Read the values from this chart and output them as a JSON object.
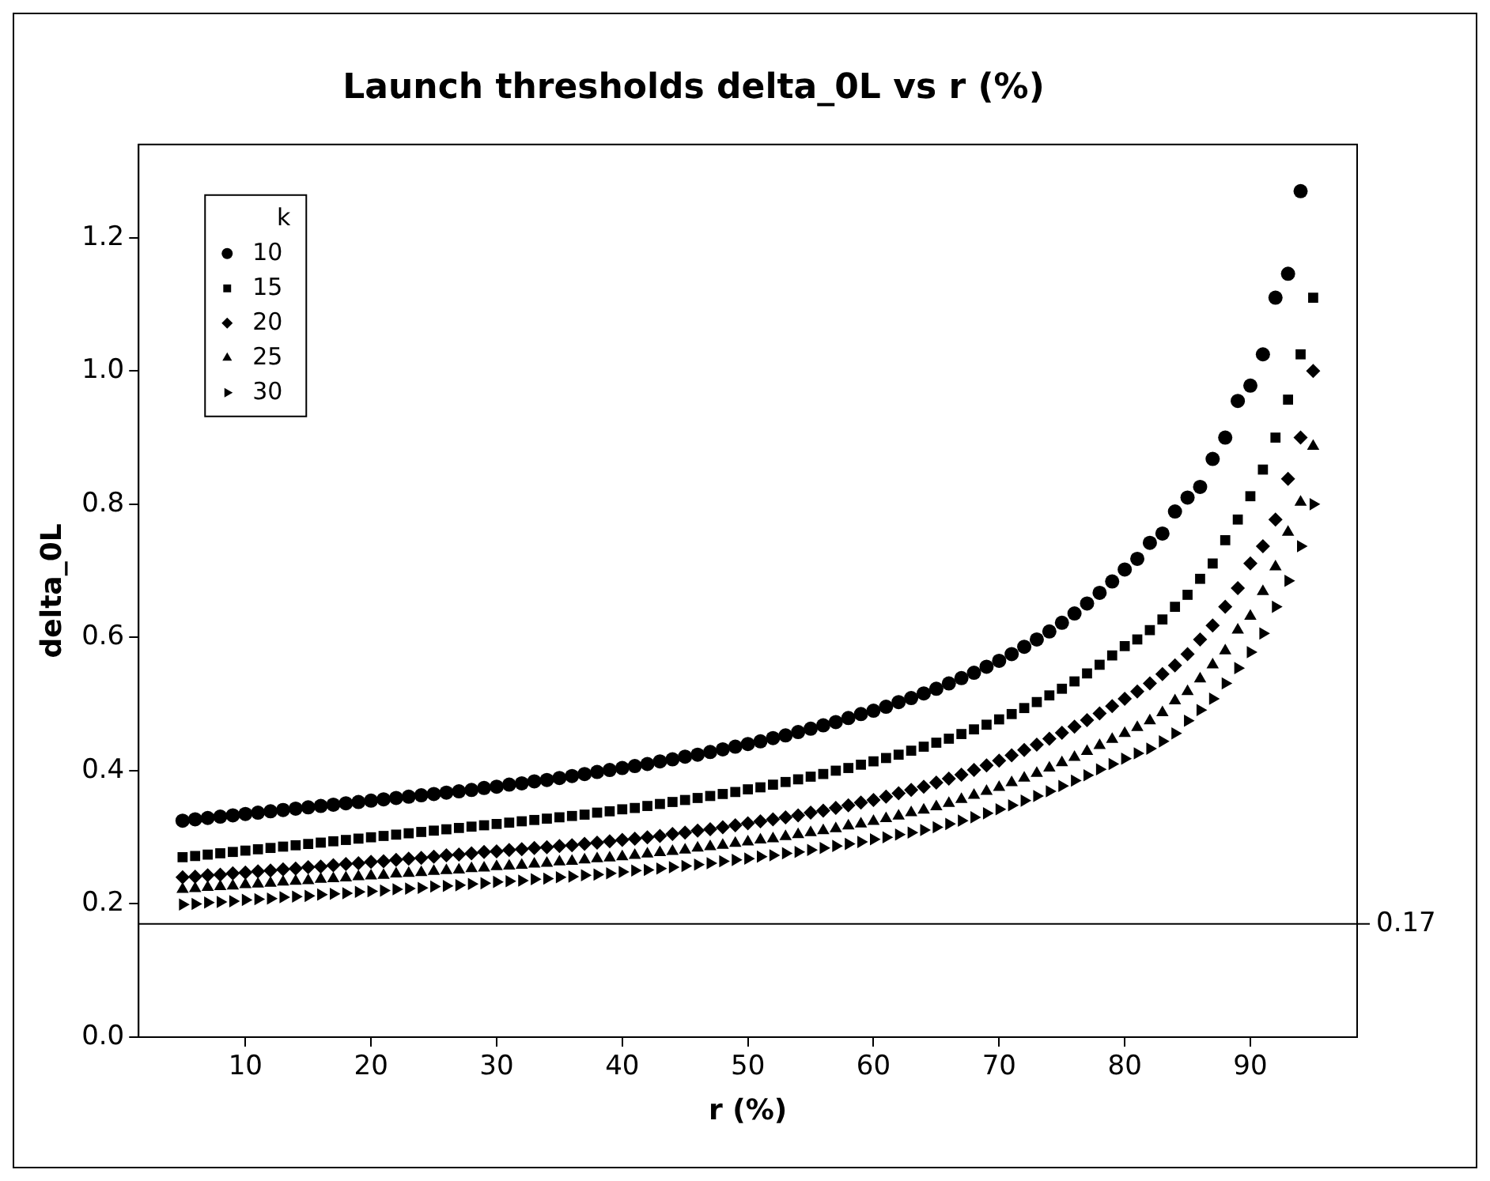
{
  "chart_data": {
    "type": "scatter",
    "title": "Launch thresholds delta_0L vs r (%)",
    "xlabel": "r (%)",
    "ylabel": "delta_0L",
    "legend_title": "k",
    "legend": "top left",
    "grid": false,
    "x": [
      5,
      6,
      7,
      8,
      9,
      10,
      11,
      12,
      13,
      14,
      15,
      16,
      17,
      18,
      19,
      20,
      21,
      22,
      23,
      24,
      25,
      26,
      27,
      28,
      29,
      30,
      31,
      32,
      33,
      34,
      35,
      36,
      37,
      38,
      39,
      40,
      41,
      42,
      43,
      44,
      45,
      46,
      47,
      48,
      49,
      50,
      51,
      52,
      53,
      54,
      55,
      56,
      57,
      58,
      59,
      60,
      61,
      62,
      63,
      64,
      65,
      66,
      67,
      68,
      69,
      70,
      71,
      72,
      73,
      74,
      75,
      76,
      77,
      78,
      79,
      80,
      81,
      82,
      83,
      84,
      85,
      86,
      87,
      88,
      89,
      90,
      91,
      92,
      93,
      94,
      95
    ],
    "xlim": [
      1.5,
      98.5
    ],
    "xticks": [
      10,
      20,
      30,
      40,
      50,
      60,
      70,
      80,
      90
    ],
    "ylim": [
      0,
      1.34
    ],
    "yticks": [
      {
        "value": 0,
        "label": "0.0"
      },
      {
        "value": 0.2,
        "label": "0.2"
      },
      {
        "value": 0.4,
        "label": "0.4"
      },
      {
        "value": 0.6,
        "label": "0.6"
      },
      {
        "value": 0.8,
        "label": "0.8"
      },
      {
        "value": 1,
        "label": "1.0"
      },
      {
        "value": 1.2,
        "label": "1.2"
      }
    ],
    "ref_lines": [
      {
        "axis": "y",
        "value": 0.17,
        "label": "0.17",
        "color": "#000000"
      }
    ],
    "series": [
      {
        "name": "10",
        "color": "#000000",
        "marker": "circle",
        "values": [
          0.325,
          0.327,
          0.329,
          0.331,
          0.333,
          0.335,
          0.337,
          0.339,
          0.341,
          0.343,
          0.345,
          0.347,
          0.349,
          0.351,
          0.353,
          0.355,
          0.357,
          0.359,
          0.361,
          0.363,
          0.365,
          0.367,
          0.369,
          0.371,
          0.374,
          0.376,
          0.379,
          0.381,
          0.384,
          0.386,
          0.389,
          0.392,
          0.395,
          0.398,
          0.401,
          0.404,
          0.407,
          0.41,
          0.414,
          0.417,
          0.421,
          0.424,
          0.428,
          0.432,
          0.436,
          0.44,
          0.444,
          0.449,
          0.453,
          0.458,
          0.463,
          0.468,
          0.473,
          0.479,
          0.485,
          0.49,
          0.496,
          0.503,
          0.509,
          0.516,
          0.523,
          0.531,
          0.539,
          0.547,
          0.556,
          0.565,
          0.575,
          0.586,
          0.597,
          0.609,
          0.622,
          0.636,
          0.651,
          0.667,
          0.684,
          0.702,
          0.718,
          0.742,
          0.756,
          0.789,
          0.81,
          0.826,
          0.868,
          0.9,
          0.955,
          0.978,
          1.025,
          1.11,
          1.146,
          1.27,
          null
        ]
      },
      {
        "name": "15",
        "color": "#000000",
        "marker": "square",
        "values": [
          0.27,
          0.272,
          0.274,
          0.276,
          0.278,
          0.28,
          0.282,
          0.284,
          0.286,
          0.288,
          0.29,
          0.292,
          0.294,
          0.296,
          0.298,
          0.3,
          0.302,
          0.304,
          0.306,
          0.308,
          0.31,
          0.312,
          0.314,
          0.316,
          0.318,
          0.32,
          0.322,
          0.324,
          0.326,
          0.328,
          0.33,
          0.332,
          0.334,
          0.337,
          0.339,
          0.342,
          0.344,
          0.347,
          0.35,
          0.353,
          0.356,
          0.359,
          0.362,
          0.365,
          0.368,
          0.372,
          0.375,
          0.379,
          0.383,
          0.387,
          0.391,
          0.395,
          0.4,
          0.404,
          0.409,
          0.414,
          0.419,
          0.424,
          0.43,
          0.436,
          0.442,
          0.448,
          0.455,
          0.462,
          0.469,
          0.477,
          0.485,
          0.494,
          0.503,
          0.513,
          0.523,
          0.534,
          0.546,
          0.559,
          0.573,
          0.587,
          0.597,
          0.611,
          0.627,
          0.646,
          0.664,
          0.688,
          0.711,
          0.746,
          0.777,
          0.812,
          0.852,
          0.9,
          0.957,
          1.025,
          1.11
        ]
      },
      {
        "name": "20",
        "color": "#000000",
        "marker": "diamond",
        "values": [
          0.24,
          0.241,
          0.243,
          0.244,
          0.246,
          0.247,
          0.249,
          0.25,
          0.252,
          0.253,
          0.255,
          0.256,
          0.258,
          0.26,
          0.261,
          0.263,
          0.264,
          0.266,
          0.268,
          0.269,
          0.271,
          0.273,
          0.274,
          0.276,
          0.278,
          0.279,
          0.281,
          0.282,
          0.284,
          0.285,
          0.287,
          0.288,
          0.29,
          0.292,
          0.294,
          0.296,
          0.298,
          0.3,
          0.302,
          0.305,
          0.307,
          0.31,
          0.312,
          0.315,
          0.318,
          0.321,
          0.324,
          0.327,
          0.33,
          0.333,
          0.337,
          0.34,
          0.344,
          0.348,
          0.352,
          0.356,
          0.361,
          0.366,
          0.371,
          0.376,
          0.382,
          0.388,
          0.394,
          0.401,
          0.408,
          0.415,
          0.423,
          0.431,
          0.439,
          0.448,
          0.457,
          0.466,
          0.476,
          0.486,
          0.497,
          0.508,
          0.519,
          0.531,
          0.545,
          0.558,
          0.575,
          0.597,
          0.618,
          0.646,
          0.674,
          0.711,
          0.737,
          0.777,
          0.838,
          0.9,
          1.0
        ]
      },
      {
        "name": "25",
        "color": "#000000",
        "marker": "triangle",
        "values": [
          0.222,
          0.223,
          0.225,
          0.226,
          0.227,
          0.229,
          0.23,
          0.231,
          0.233,
          0.234,
          0.235,
          0.237,
          0.238,
          0.239,
          0.241,
          0.242,
          0.243,
          0.245,
          0.246,
          0.247,
          0.249,
          0.25,
          0.251,
          0.253,
          0.254,
          0.256,
          0.257,
          0.258,
          0.26,
          0.261,
          0.263,
          0.264,
          0.266,
          0.268,
          0.269,
          0.271,
          0.273,
          0.275,
          0.277,
          0.279,
          0.281,
          0.284,
          0.286,
          0.288,
          0.291,
          0.293,
          0.296,
          0.298,
          0.301,
          0.304,
          0.307,
          0.31,
          0.313,
          0.317,
          0.32,
          0.324,
          0.328,
          0.332,
          0.337,
          0.341,
          0.346,
          0.351,
          0.357,
          0.363,
          0.369,
          0.375,
          0.382,
          0.389,
          0.396,
          0.404,
          0.412,
          0.42,
          0.429,
          0.438,
          0.447,
          0.456,
          0.465,
          0.475,
          0.487,
          0.505,
          0.519,
          0.538,
          0.559,
          0.58,
          0.611,
          0.632,
          0.669,
          0.706,
          0.758,
          0.803,
          0.887
        ]
      },
      {
        "name": "30",
        "color": "#000000",
        "marker": "triangle-right",
        "values": [
          0.199,
          0.2,
          0.202,
          0.203,
          0.204,
          0.206,
          0.207,
          0.208,
          0.21,
          0.211,
          0.212,
          0.214,
          0.215,
          0.216,
          0.218,
          0.219,
          0.22,
          0.222,
          0.223,
          0.224,
          0.226,
          0.227,
          0.228,
          0.23,
          0.231,
          0.233,
          0.234,
          0.235,
          0.237,
          0.238,
          0.24,
          0.241,
          0.243,
          0.244,
          0.246,
          0.248,
          0.25,
          0.251,
          0.253,
          0.255,
          0.257,
          0.259,
          0.261,
          0.264,
          0.266,
          0.268,
          0.271,
          0.273,
          0.276,
          0.278,
          0.281,
          0.284,
          0.287,
          0.29,
          0.293,
          0.297,
          0.3,
          0.304,
          0.307,
          0.311,
          0.315,
          0.32,
          0.325,
          0.33,
          0.336,
          0.342,
          0.348,
          0.355,
          0.362,
          0.369,
          0.377,
          0.385,
          0.393,
          0.402,
          0.41,
          0.418,
          0.426,
          0.433,
          0.444,
          0.456,
          0.475,
          0.491,
          0.508,
          0.531,
          0.554,
          0.578,
          0.606,
          0.646,
          0.685,
          0.737,
          0.8
        ]
      }
    ]
  }
}
